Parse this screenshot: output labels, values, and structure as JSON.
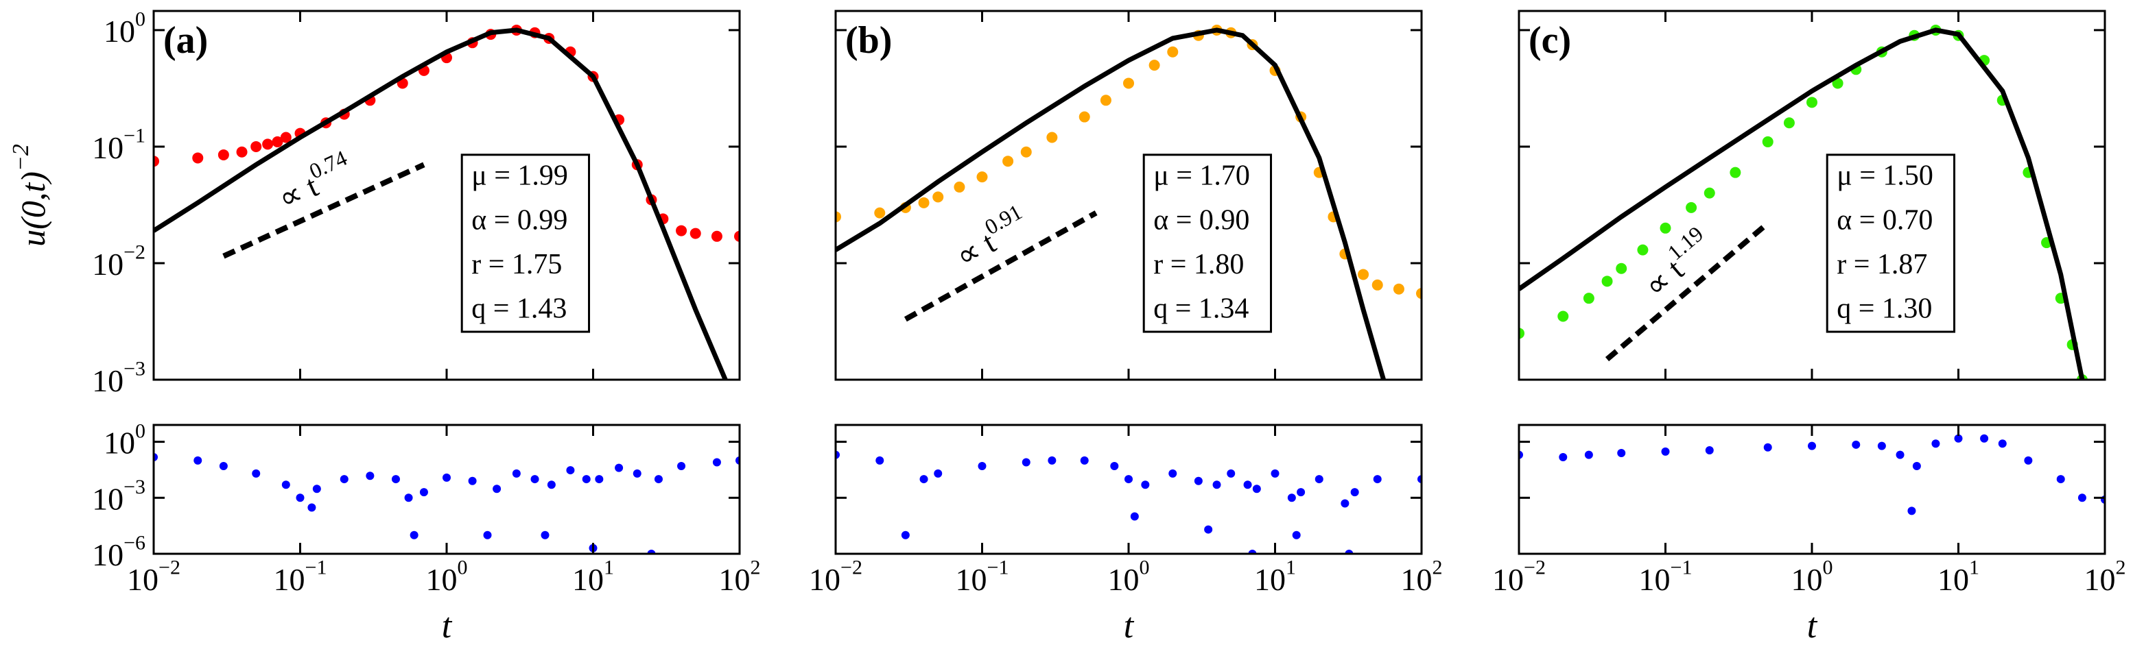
{
  "chart_data": [
    {
      "type": "scatter",
      "panel_label": "(a)",
      "log_x": true,
      "log_y": true,
      "xlim": [
        0.01,
        100
      ],
      "xticks": [
        0.01,
        0.1,
        1,
        10,
        100
      ],
      "xtick_labels": false,
      "ylim": [
        0.001,
        1.46
      ],
      "yticks": [
        {
          "value": 1,
          "label": "10",
          "exponent": "0"
        },
        {
          "value": 0.1,
          "label": "10",
          "exponent": "−1"
        },
        {
          "value": 0.01,
          "label": "10",
          "exponent": "−2"
        },
        {
          "value": 0.001,
          "label": "10",
          "exponent": "−3"
        }
      ],
      "ytick_labels": true,
      "y_label": {
        "text": "u(0,t)",
        "exponent": "−2"
      },
      "series": [
        {
          "style": "points",
          "color": "#ff0000",
          "x": [
            0.01,
            0.02,
            0.03,
            0.04,
            0.05,
            0.06,
            0.07,
            0.08,
            0.1,
            0.15,
            0.2,
            0.3,
            0.5,
            0.7,
            1,
            1.5,
            2,
            3,
            4,
            5,
            7,
            10,
            15,
            20,
            25,
            30,
            40,
            50,
            70,
            100
          ],
          "values": [
            0.075,
            0.08,
            0.085,
            0.09,
            0.1,
            0.105,
            0.11,
            0.12,
            0.13,
            0.16,
            0.19,
            0.25,
            0.35,
            0.45,
            0.58,
            0.78,
            0.92,
            1.0,
            0.95,
            0.85,
            0.65,
            0.4,
            0.17,
            0.07,
            0.035,
            0.024,
            0.019,
            0.018,
            0.017,
            0.017
          ]
        },
        {
          "style": "line",
          "color": "#000000",
          "x": [
            0.01,
            0.02,
            0.05,
            0.1,
            0.2,
            0.5,
            1,
            2,
            3,
            5,
            10,
            20,
            30,
            50,
            80
          ],
          "values": [
            0.019,
            0.033,
            0.07,
            0.12,
            0.2,
            0.4,
            0.65,
            0.95,
            1.0,
            0.85,
            0.4,
            0.07,
            0.02,
            0.004,
            0.001
          ]
        },
        {
          "style": "dashed",
          "color": "#000000",
          "x": [
            0.03,
            0.7
          ],
          "values": [
            0.0115,
            0.07
          ]
        }
      ],
      "annotation": {
        "text": "∝ t",
        "exponent": "0.74"
      },
      "params": [
        "μ = 1.99",
        "α = 0.99",
        "r = 1.75",
        "q = 1.43"
      ]
    },
    {
      "type": "scatter",
      "log_x": true,
      "log_y": true,
      "xlim": [
        0.01,
        100
      ],
      "xticks": [
        {
          "value": 0.01,
          "label": "10",
          "exponent": "−2"
        },
        {
          "value": 0.1,
          "label": "10",
          "exponent": "−1"
        },
        {
          "value": 1,
          "label": "10",
          "exponent": "0"
        },
        {
          "value": 10,
          "label": "10",
          "exponent": "1"
        },
        {
          "value": 100,
          "label": "10",
          "exponent": "2"
        }
      ],
      "xtick_labels": true,
      "ylim": [
        1e-06,
        8
      ],
      "yticks": [
        {
          "value": 1,
          "label": "10",
          "exponent": "0"
        },
        {
          "value": 0.001,
          "label": "10",
          "exponent": "−3"
        },
        {
          "value": 1e-06,
          "label": "10",
          "exponent": "−6"
        }
      ],
      "ytick_labels": true,
      "x_label": "t",
      "series": [
        {
          "style": "points",
          "color": "#0000ff",
          "x": [
            0.01,
            0.02,
            0.03,
            0.05,
            0.08,
            0.1,
            0.12,
            0.13,
            0.2,
            0.3,
            0.45,
            0.55,
            0.6,
            0.7,
            1,
            1.5,
            1.9,
            2.2,
            3,
            4,
            4.7,
            5.2,
            7,
            9,
            10,
            11,
            15,
            20,
            25,
            28,
            40,
            70,
            100
          ],
          "values": [
            0.15,
            0.1,
            0.05,
            0.02,
            0.005,
            0.001,
            0.0003,
            0.003,
            0.01,
            0.015,
            0.01,
            0.001,
            1e-05,
            0.002,
            0.012,
            0.008,
            1e-05,
            0.003,
            0.02,
            0.01,
            1e-05,
            0.005,
            0.03,
            0.01,
            2e-06,
            0.01,
            0.04,
            0.02,
            1e-06,
            0.01,
            0.05,
            0.08,
            0.1
          ]
        }
      ]
    },
    {
      "type": "scatter",
      "panel_label": "(b)",
      "log_x": true,
      "log_y": true,
      "xlim": [
        0.01,
        100
      ],
      "xticks": [
        0.01,
        0.1,
        1,
        10,
        100
      ],
      "xtick_labels": false,
      "ylim": [
        0.001,
        1.46
      ],
      "yticks": [
        1,
        0.1,
        0.01,
        0.001
      ],
      "ytick_labels": false,
      "series": [
        {
          "style": "points",
          "color": "#ffa500",
          "x": [
            0.01,
            0.02,
            0.03,
            0.04,
            0.05,
            0.07,
            0.1,
            0.15,
            0.2,
            0.3,
            0.5,
            0.7,
            1,
            1.5,
            2,
            3,
            4,
            5,
            7,
            10,
            15,
            20,
            25,
            30,
            40,
            50,
            70,
            100
          ],
          "values": [
            0.025,
            0.027,
            0.03,
            0.033,
            0.037,
            0.045,
            0.055,
            0.075,
            0.09,
            0.12,
            0.18,
            0.25,
            0.35,
            0.5,
            0.65,
            0.9,
            1.0,
            0.95,
            0.75,
            0.45,
            0.18,
            0.06,
            0.025,
            0.012,
            0.008,
            0.0065,
            0.006,
            0.0055
          ]
        },
        {
          "style": "line",
          "color": "#000000",
          "x": [
            0.01,
            0.02,
            0.05,
            0.1,
            0.2,
            0.5,
            1,
            2,
            4,
            6,
            10,
            20,
            30,
            40,
            55
          ],
          "values": [
            0.013,
            0.022,
            0.05,
            0.09,
            0.16,
            0.33,
            0.55,
            0.85,
            1.0,
            0.9,
            0.5,
            0.08,
            0.015,
            0.004,
            0.001
          ]
        },
        {
          "style": "dashed",
          "color": "#000000",
          "x": [
            0.03,
            0.6
          ],
          "values": [
            0.0033,
            0.027
          ]
        }
      ],
      "annotation": {
        "text": "∝ t",
        "exponent": "0.91"
      },
      "params": [
        "μ = 1.70",
        "α = 0.90",
        "r = 1.80",
        "q = 1.34"
      ]
    },
    {
      "type": "scatter",
      "log_x": true,
      "log_y": true,
      "xlim": [
        0.01,
        100
      ],
      "xticks": [
        {
          "value": 0.01,
          "label": "10",
          "exponent": "−2"
        },
        {
          "value": 0.1,
          "label": "10",
          "exponent": "−1"
        },
        {
          "value": 1,
          "label": "10",
          "exponent": "0"
        },
        {
          "value": 10,
          "label": "10",
          "exponent": "1"
        },
        {
          "value": 100,
          "label": "10",
          "exponent": "2"
        }
      ],
      "xtick_labels": true,
      "ylim": [
        1e-06,
        8
      ],
      "yticks": [
        1,
        0.001,
        1e-06
      ],
      "ytick_labels": false,
      "x_label": "t",
      "series": [
        {
          "style": "points",
          "color": "#0000ff",
          "x": [
            0.01,
            0.02,
            0.03,
            0.04,
            0.05,
            0.1,
            0.2,
            0.3,
            0.5,
            0.8,
            1,
            1.1,
            1.3,
            2,
            3,
            3.5,
            4,
            5,
            6.5,
            7,
            7.5,
            10,
            13,
            14,
            15,
            20,
            30,
            32,
            35,
            50,
            100
          ],
          "values": [
            0.2,
            0.1,
            1e-05,
            0.01,
            0.02,
            0.05,
            0.08,
            0.1,
            0.1,
            0.05,
            0.01,
            0.0001,
            0.005,
            0.02,
            0.008,
            2e-05,
            0.005,
            0.02,
            0.005,
            1e-06,
            0.003,
            0.02,
            0.001,
            1e-05,
            0.002,
            0.01,
            0.0005,
            1e-06,
            0.002,
            0.01,
            0.01
          ]
        }
      ]
    },
    {
      "type": "scatter",
      "panel_label": "(c)",
      "log_x": true,
      "log_y": true,
      "xlim": [
        0.01,
        100
      ],
      "xticks": [
        0.01,
        0.1,
        1,
        10,
        100
      ],
      "xtick_labels": false,
      "ylim": [
        0.001,
        1.46
      ],
      "yticks": [
        1,
        0.1,
        0.01,
        0.001
      ],
      "ytick_labels": false,
      "series": [
        {
          "style": "points",
          "color": "#33ee00",
          "x": [
            0.01,
            0.02,
            0.03,
            0.04,
            0.05,
            0.07,
            0.1,
            0.15,
            0.2,
            0.3,
            0.5,
            0.7,
            1,
            1.5,
            2,
            3,
            5,
            7,
            10,
            15,
            20,
            30,
            40,
            50,
            60,
            70
          ],
          "values": [
            0.0025,
            0.0035,
            0.005,
            0.007,
            0.009,
            0.013,
            0.02,
            0.03,
            0.04,
            0.06,
            0.11,
            0.16,
            0.24,
            0.35,
            0.46,
            0.65,
            0.9,
            1.0,
            0.9,
            0.55,
            0.25,
            0.06,
            0.015,
            0.005,
            0.002,
            0.001
          ]
        },
        {
          "style": "line",
          "color": "#000000",
          "x": [
            0.01,
            0.02,
            0.05,
            0.1,
            0.2,
            0.5,
            1,
            2,
            4,
            7,
            10,
            20,
            30,
            50,
            70
          ],
          "values": [
            0.006,
            0.011,
            0.025,
            0.045,
            0.08,
            0.17,
            0.3,
            0.5,
            0.8,
            1.0,
            0.92,
            0.3,
            0.08,
            0.008,
            0.001
          ]
        },
        {
          "style": "dashed",
          "color": "#000000",
          "x": [
            0.04,
            0.5
          ],
          "values": [
            0.0015,
            0.022
          ]
        }
      ],
      "annotation": {
        "text": "∝ t",
        "exponent": "1.19"
      },
      "params": [
        "μ = 1.50",
        "α = 0.70",
        "r = 1.87",
        "q = 1.30"
      ]
    },
    {
      "type": "scatter",
      "log_x": true,
      "log_y": true,
      "xlim": [
        0.01,
        100
      ],
      "xticks": [
        {
          "value": 0.01,
          "label": "10",
          "exponent": "−2"
        },
        {
          "value": 0.1,
          "label": "10",
          "exponent": "−1"
        },
        {
          "value": 1,
          "label": "10",
          "exponent": "0"
        },
        {
          "value": 10,
          "label": "10",
          "exponent": "1"
        },
        {
          "value": 100,
          "label": "10",
          "exponent": "2"
        }
      ],
      "xtick_labels": true,
      "ylim": [
        1e-06,
        8
      ],
      "yticks": [
        1,
        0.001,
        1e-06
      ],
      "ytick_labels": false,
      "x_label": "t",
      "series": [
        {
          "style": "points",
          "color": "#0000ff",
          "x": [
            0.01,
            0.02,
            0.03,
            0.05,
            0.1,
            0.2,
            0.5,
            1,
            2,
            3,
            4,
            4.8,
            5.2,
            7,
            10,
            15,
            20,
            30,
            50,
            70,
            100
          ],
          "values": [
            0.2,
            0.15,
            0.2,
            0.25,
            0.3,
            0.35,
            0.5,
            0.6,
            0.7,
            0.6,
            0.2,
            0.0002,
            0.05,
            0.8,
            1.5,
            1.5,
            0.8,
            0.1,
            0.01,
            0.001,
            0.0008
          ]
        }
      ]
    }
  ]
}
